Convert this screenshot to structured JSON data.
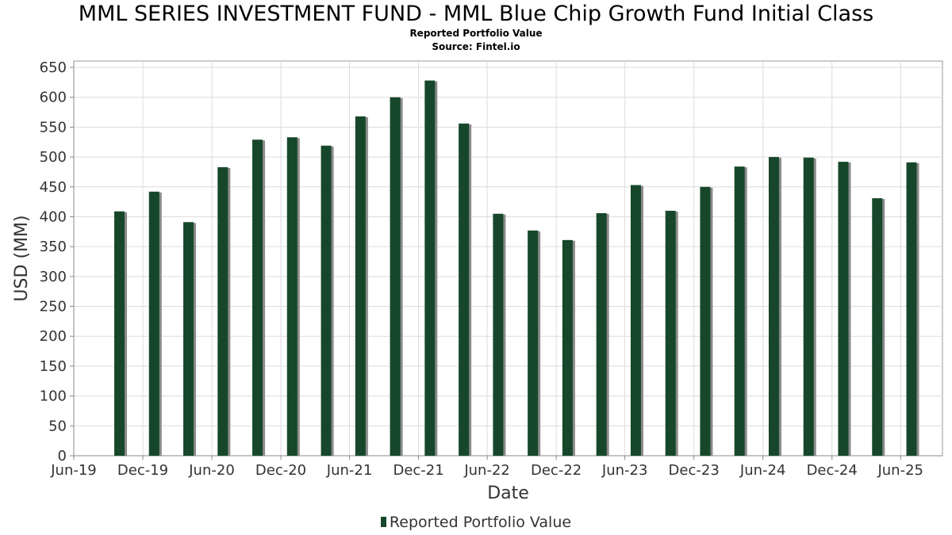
{
  "colors": {
    "bar": "#17472a",
    "bar_shadow": "#8a8a8a",
    "grid": "#dcdcdc",
    "axis": "#888888",
    "text": "#333333"
  },
  "chart_data": {
    "type": "bar",
    "title": "MML SERIES INVESTMENT FUND - MML Blue Chip Growth Fund Initial Class",
    "subtitle": "Reported Portfolio Value",
    "source": "Source: Fintel.io",
    "xlabel": "Date",
    "ylabel": "USD (MM)",
    "ylim": [
      0,
      650
    ],
    "yticks": [
      0,
      50,
      100,
      150,
      200,
      250,
      300,
      350,
      400,
      450,
      500,
      550,
      600,
      650
    ],
    "xlim": [
      "2019-06-01",
      "2025-09-20"
    ],
    "xticks": [
      {
        "label": "Jun-19",
        "date": "2019-06-01"
      },
      {
        "label": "Dec-19",
        "date": "2019-12-01"
      },
      {
        "label": "Jun-20",
        "date": "2020-06-01"
      },
      {
        "label": "Dec-20",
        "date": "2020-12-01"
      },
      {
        "label": "Jun-21",
        "date": "2021-06-01"
      },
      {
        "label": "Dec-21",
        "date": "2021-12-01"
      },
      {
        "label": "Jun-22",
        "date": "2022-06-01"
      },
      {
        "label": "Dec-22",
        "date": "2022-12-01"
      },
      {
        "label": "Jun-23",
        "date": "2023-06-01"
      },
      {
        "label": "Dec-23",
        "date": "2023-12-01"
      },
      {
        "label": "Jun-24",
        "date": "2024-06-01"
      },
      {
        "label": "Dec-24",
        "date": "2024-12-01"
      },
      {
        "label": "Jun-25",
        "date": "2025-06-01"
      }
    ],
    "grid": true,
    "legend_position": "bottom-center",
    "series": [
      {
        "name": "Reported Portfolio Value",
        "points": [
          {
            "date": "2019-09-30",
            "value": 409
          },
          {
            "date": "2019-12-31",
            "value": 442
          },
          {
            "date": "2020-03-31",
            "value": 391
          },
          {
            "date": "2020-06-30",
            "value": 483
          },
          {
            "date": "2020-09-30",
            "value": 529
          },
          {
            "date": "2020-12-31",
            "value": 533
          },
          {
            "date": "2021-03-31",
            "value": 519
          },
          {
            "date": "2021-06-30",
            "value": 568
          },
          {
            "date": "2021-09-30",
            "value": 600
          },
          {
            "date": "2021-12-31",
            "value": 628
          },
          {
            "date": "2022-03-31",
            "value": 556
          },
          {
            "date": "2022-06-30",
            "value": 405
          },
          {
            "date": "2022-09-30",
            "value": 377
          },
          {
            "date": "2022-12-31",
            "value": 361
          },
          {
            "date": "2023-03-31",
            "value": 406
          },
          {
            "date": "2023-06-30",
            "value": 453
          },
          {
            "date": "2023-09-30",
            "value": 410
          },
          {
            "date": "2023-12-31",
            "value": 450
          },
          {
            "date": "2024-03-31",
            "value": 484
          },
          {
            "date": "2024-06-30",
            "value": 500
          },
          {
            "date": "2024-09-30",
            "value": 499
          },
          {
            "date": "2024-12-31",
            "value": 492
          },
          {
            "date": "2025-03-31",
            "value": 431
          },
          {
            "date": "2025-06-30",
            "value": 491
          }
        ]
      }
    ]
  }
}
